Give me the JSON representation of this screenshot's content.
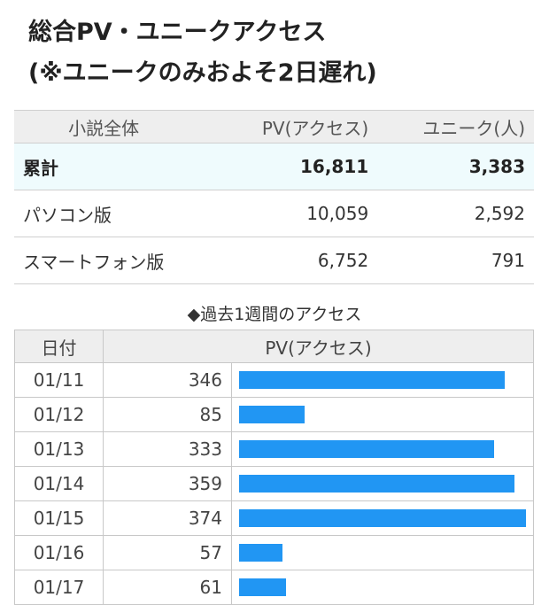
{
  "title": {
    "line1": "総合PV・ユニークアクセス",
    "line2": "(※ユニークのみおよそ2日遅れ)"
  },
  "summary": {
    "headers": [
      "小説全体",
      "PV(アクセス)",
      "ユニーク(人)"
    ],
    "rows": [
      {
        "label": "累計",
        "pv": "16,811",
        "unique": "3,383"
      },
      {
        "label": "パソコン版",
        "pv": "10,059",
        "unique": "2,592"
      },
      {
        "label": "スマートフォン版",
        "pv": "6,752",
        "unique": "791"
      }
    ]
  },
  "weekly": {
    "caption": "◆過去1週間のアクセス",
    "headers": [
      "日付",
      "PV(アクセス)"
    ],
    "max_value": 374,
    "bar_color": "#2196f3"
  },
  "chart_data": {
    "type": "bar",
    "categories": [
      "01/11",
      "01/12",
      "01/13",
      "01/14",
      "01/15",
      "01/16",
      "01/17"
    ],
    "values": [
      346,
      85,
      333,
      359,
      374,
      57,
      61
    ]
  }
}
